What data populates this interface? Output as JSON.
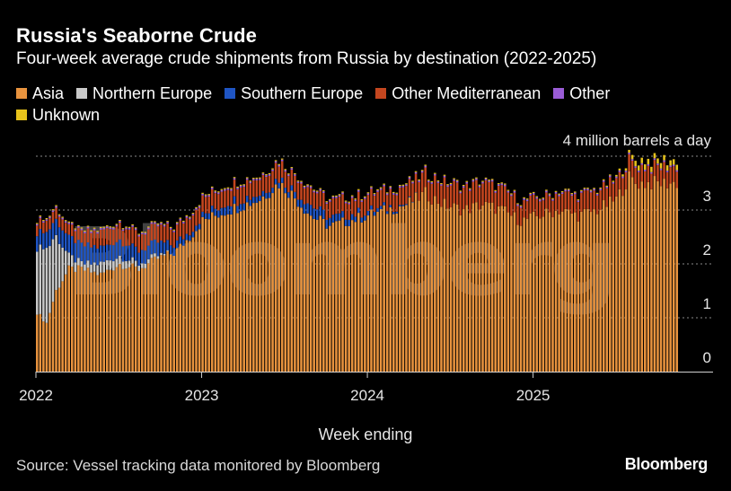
{
  "header": {
    "title": "Russia's Seaborne Crude",
    "subtitle": "Four-week average crude shipments from Russia by destination (2022-2025)"
  },
  "footer": {
    "source": "Source: Vessel tracking data monitored by Bloomberg",
    "logo": "Bloomberg"
  },
  "watermark": "Bloomberg",
  "colors": {
    "Asia": "#e8933e",
    "Northern Europe": "#c9c9c9",
    "Southern Europe": "#1f55c4",
    "Other Mediterranean": "#c4461f",
    "Other": "#9a5cd6",
    "Unknown": "#e6c21b",
    "background": "#000000",
    "grid": "#8a8a8a"
  },
  "chart_data": {
    "type": "bar",
    "stacked": true,
    "title": "Russia's Seaborne Crude",
    "xlabel": "Week ending",
    "ylabel": "",
    "y_unit_label": "4 million barrels a day",
    "ylim": [
      0,
      4
    ],
    "yticks": [
      0,
      1,
      2,
      3
    ],
    "grid": true,
    "legend_position": "top",
    "x_tick_labels": [
      "2022",
      "2023",
      "2024",
      "2025"
    ],
    "x_range_years": [
      2022.0,
      2025.88
    ],
    "week_start_year": 2022.0,
    "weeks_per_year": 52,
    "series": [
      {
        "name": "Asia",
        "anchors": [
          [
            0,
            1.1
          ],
          [
            3,
            0.9
          ],
          [
            6,
            1.5
          ],
          [
            10,
            1.9
          ],
          [
            14,
            1.9
          ],
          [
            20,
            1.8
          ],
          [
            26,
            2.0
          ],
          [
            32,
            1.9
          ],
          [
            38,
            2.1
          ],
          [
            43,
            2.2
          ],
          [
            48,
            2.5
          ],
          [
            52,
            2.8
          ],
          [
            60,
            3.0
          ],
          [
            70,
            3.2
          ],
          [
            76,
            3.5
          ],
          [
            80,
            3.3
          ],
          [
            86,
            2.9
          ],
          [
            92,
            2.7
          ],
          [
            98,
            2.8
          ],
          [
            104,
            2.9
          ],
          [
            110,
            3.0
          ],
          [
            116,
            3.1
          ],
          [
            122,
            3.3
          ],
          [
            128,
            3.1
          ],
          [
            134,
            3.0
          ],
          [
            140,
            3.1
          ],
          [
            146,
            3.0
          ],
          [
            152,
            2.8
          ],
          [
            158,
            2.9
          ],
          [
            164,
            3.0
          ],
          [
            170,
            2.9
          ],
          [
            176,
            3.0
          ],
          [
            182,
            3.2
          ],
          [
            186,
            3.6
          ],
          [
            188,
            3.5
          ]
        ]
      },
      {
        "name": "Northern Europe",
        "anchors": [
          [
            0,
            1.2
          ],
          [
            3,
            1.4
          ],
          [
            6,
            1.0
          ],
          [
            10,
            0.25
          ],
          [
            14,
            0.1
          ],
          [
            20,
            0.2
          ],
          [
            26,
            0.15
          ],
          [
            32,
            0.1
          ],
          [
            38,
            0.05
          ],
          [
            43,
            0.0
          ],
          [
            188,
            0.0
          ]
        ]
      },
      {
        "name": "Southern Europe",
        "anchors": [
          [
            0,
            0.3
          ],
          [
            6,
            0.3
          ],
          [
            12,
            0.35
          ],
          [
            20,
            0.3
          ],
          [
            26,
            0.3
          ],
          [
            32,
            0.25
          ],
          [
            38,
            0.25
          ],
          [
            43,
            0.15
          ],
          [
            48,
            0.1
          ],
          [
            52,
            0.1
          ],
          [
            60,
            0.15
          ],
          [
            70,
            0.1
          ],
          [
            80,
            0.1
          ],
          [
            86,
            0.2
          ],
          [
            92,
            0.15
          ],
          [
            100,
            0.1
          ],
          [
            110,
            0.05
          ],
          [
            120,
            0.0
          ],
          [
            188,
            0.0
          ]
        ]
      },
      {
        "name": "Other Mediterranean",
        "anchors": [
          [
            0,
            0.2
          ],
          [
            10,
            0.2
          ],
          [
            20,
            0.3
          ],
          [
            30,
            0.3
          ],
          [
            40,
            0.3
          ],
          [
            52,
            0.3
          ],
          [
            60,
            0.3
          ],
          [
            70,
            0.3
          ],
          [
            80,
            0.3
          ],
          [
            90,
            0.3
          ],
          [
            100,
            0.3
          ],
          [
            110,
            0.3
          ],
          [
            120,
            0.35
          ],
          [
            130,
            0.4
          ],
          [
            140,
            0.4
          ],
          [
            150,
            0.35
          ],
          [
            160,
            0.3
          ],
          [
            170,
            0.35
          ],
          [
            180,
            0.35
          ],
          [
            188,
            0.3
          ]
        ]
      },
      {
        "name": "Other",
        "anchors": [
          [
            0,
            0.03
          ],
          [
            188,
            0.03
          ]
        ]
      },
      {
        "name": "Unknown",
        "anchors": [
          [
            0,
            0.02
          ],
          [
            180,
            0.02
          ],
          [
            186,
            0.05
          ],
          [
            188,
            0.1
          ]
        ]
      }
    ]
  }
}
